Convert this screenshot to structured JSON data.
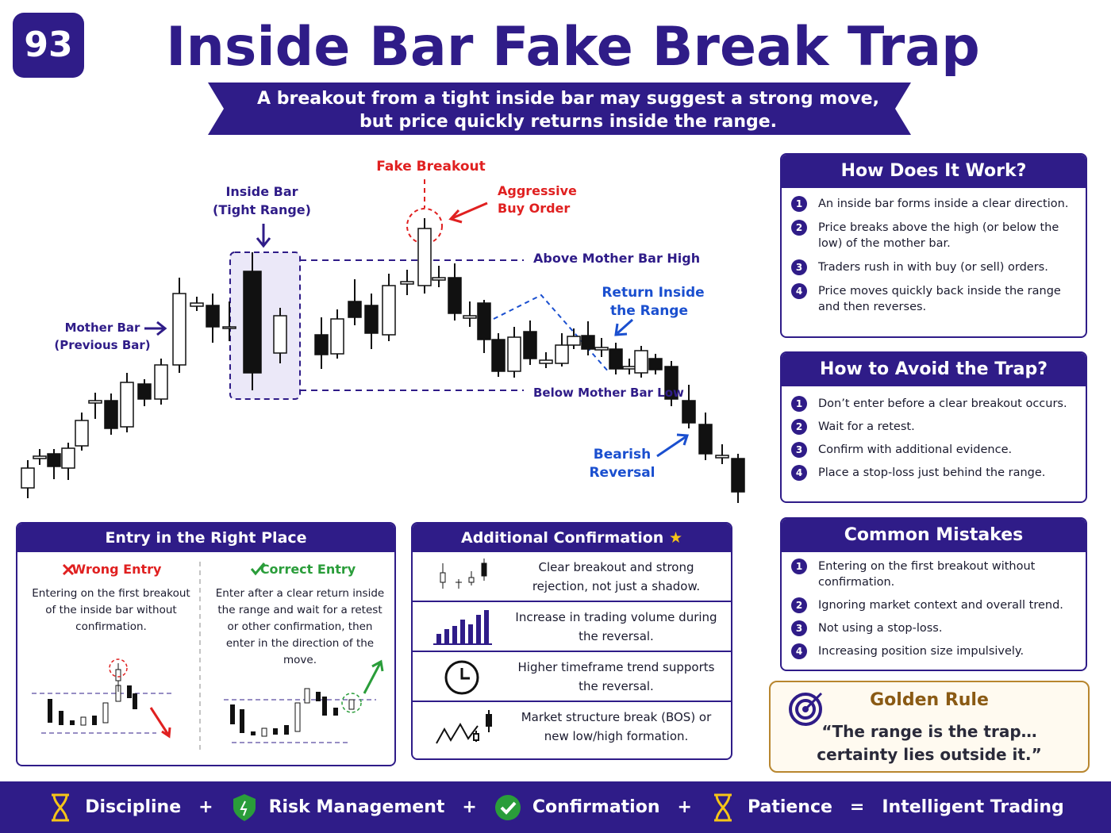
{
  "badge": "93",
  "header": {
    "title": "Inside Bar Fake Break Trap",
    "subtitle": [
      "A breakout from a tight inside bar may suggest a strong move,",
      "but price quickly returns inside the range."
    ]
  },
  "diagram": {
    "fake_breakout": "Fake Breakout",
    "aggressive_buy": [
      "Aggressive",
      "Buy Order"
    ],
    "inside_bar": [
      "Inside Bar",
      "(Tight Range)"
    ],
    "mother_bar": [
      "Mother Bar",
      "(Previous Bar)"
    ],
    "above_high": "Above Mother Bar High",
    "return_inside": [
      "Return Inside",
      "the Range"
    ],
    "below_low": "Below Mother Bar Low",
    "bearish_reversal": [
      "Bearish",
      "Reversal"
    ]
  },
  "how_it_works": {
    "title": "How Does It Work?",
    "items": [
      {
        "number": 1,
        "text": "An inside bar forms inside a clear direction."
      },
      {
        "number": 2,
        "text": "Price breaks above the high (or below the low) of the mother bar."
      },
      {
        "number": 3,
        "text": "Traders rush in with buy (or sell) orders."
      },
      {
        "number": 4,
        "text": "Price moves quickly back inside the range and then reverses."
      }
    ]
  },
  "avoid_trap": {
    "title": "How to Avoid the Trap?",
    "items": [
      {
        "number": 1,
        "text": "Don’t enter before a clear breakout occurs."
      },
      {
        "number": 2,
        "text": "Wait for a retest."
      },
      {
        "number": 3,
        "text": "Confirm with additional evidence."
      },
      {
        "number": 4,
        "text": "Place a stop-loss just behind the range."
      }
    ]
  },
  "common_mistakes": {
    "title": "Common Mistakes",
    "items": [
      {
        "number": 1,
        "text": "Entering on the first breakout without confirmation."
      },
      {
        "number": 2,
        "text": "Ignoring market context and overall trend."
      },
      {
        "number": 3,
        "text": "Not using a stop-loss."
      },
      {
        "number": 4,
        "text": "Increasing position size impulsively."
      }
    ]
  },
  "golden_rule": {
    "title": "Golden Rule",
    "quote": [
      "“The range is the trap…",
      "certainty lies outside it.”"
    ]
  },
  "entry": {
    "title": "Entry in the Right Place",
    "wrong": {
      "label": "Wrong Entry",
      "text": "Entering on the first breakout of the inside bar without confirmation."
    },
    "correct": {
      "label": "Correct Entry",
      "text": "Enter after a clear return inside the range and wait for a retest or other confirmation, then enter in the direction of the move."
    }
  },
  "confirmation": {
    "title": "Additional Confirmation",
    "items": [
      "Clear breakout and strong rejection, not just a shadow.",
      "Increase in trading volume during the reversal.",
      "Higher timeframe trend supports the reversal.",
      "Market structure break (BOS) or new low/high formation."
    ]
  },
  "footer": [
    "Discipline",
    "+",
    "Risk Management",
    "+",
    "Confirmation",
    "+",
    "Patience",
    "=",
    "Intelligent Trading"
  ]
}
